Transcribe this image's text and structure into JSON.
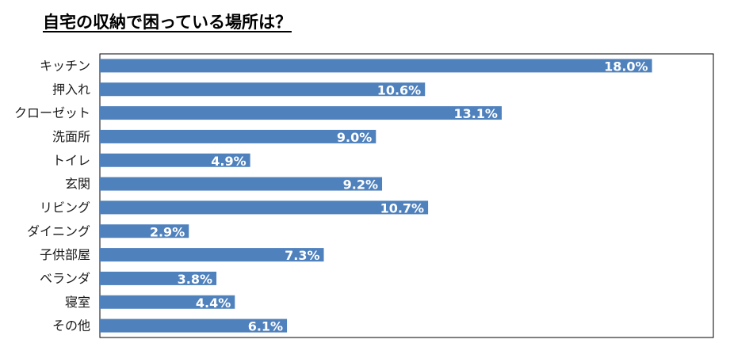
{
  "chart_data": {
    "type": "bar",
    "orientation": "horizontal",
    "title": "自宅の収納で困っている場所は？",
    "categories": [
      "キッチン",
      "押入れ",
      "クローゼット",
      "洗面所",
      "トイレ",
      "玄関",
      "リビング",
      "ダイニング",
      "子供部屋",
      "ベランダ",
      "寝室",
      "その他"
    ],
    "values": [
      18.0,
      10.6,
      13.1,
      9.0,
      4.9,
      9.2,
      10.7,
      2.9,
      7.3,
      3.8,
      4.4,
      6.1
    ],
    "value_labels": [
      "18.0%",
      "10.6%",
      "13.1%",
      "9.0%",
      "4.9%",
      "9.2%",
      "10.7%",
      "2.9%",
      "7.3%",
      "3.8%",
      "4.4%",
      "6.1%"
    ],
    "xlim": [
      0,
      20
    ],
    "xlabel": "",
    "ylabel": "",
    "grid": false,
    "bar_color": "#4f81bd"
  }
}
